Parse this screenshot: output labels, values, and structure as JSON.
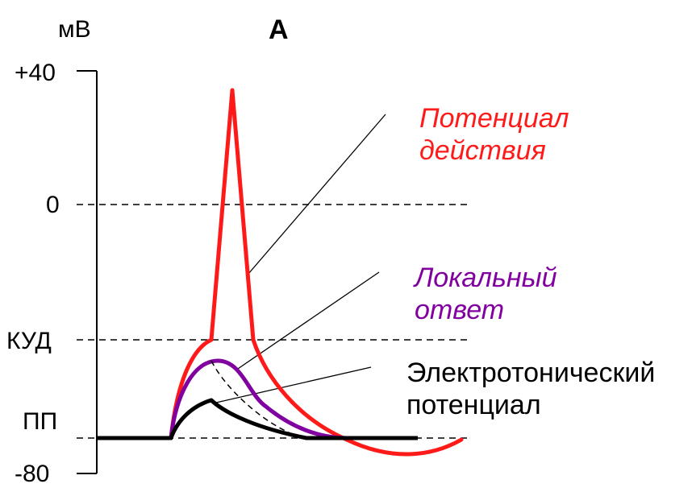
{
  "figure": {
    "panel_letter": "А",
    "unit": "мВ",
    "y_ticks": {
      "plus40": "+40",
      "zero": "0",
      "threshold": "КУД",
      "resting": "ПП",
      "minus80": "-80"
    },
    "labels": {
      "action_potential": [
        "Потенциал",
        "действия"
      ],
      "local_response": [
        "Локальный",
        "ответ"
      ],
      "electrotonic": [
        "Электротонический",
        "потенциал"
      ]
    },
    "colors": {
      "action_potential": "#ff1a1a",
      "local_response": "#8000a0",
      "electrotonic": "#000000",
      "axis": "#000000",
      "leader_lines": "#000000"
    }
  }
}
